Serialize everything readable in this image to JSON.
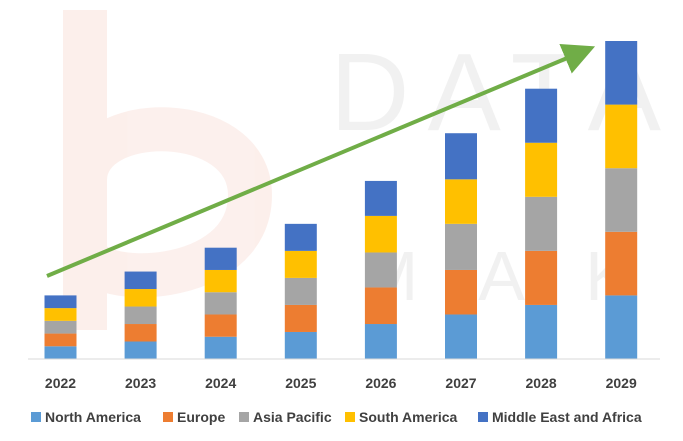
{
  "chart_data": {
    "type": "bar",
    "stacked": true,
    "title": "",
    "xlabel": "",
    "ylabel": "",
    "ylim": [
      0,
      100
    ],
    "grid": false,
    "legend_position": "bottom",
    "categories": [
      "2022",
      "2023",
      "2024",
      "2025",
      "2026",
      "2027",
      "2028",
      "2029"
    ],
    "series": [
      {
        "name": "North America",
        "color": "#5B9BD5",
        "values": [
          4,
          5.5,
          7,
          8.5,
          11,
          14,
          17,
          20
        ]
      },
      {
        "name": "Europe",
        "color": "#ED7D31",
        "values": [
          4,
          5.5,
          7,
          8.5,
          11.5,
          14,
          17,
          20
        ]
      },
      {
        "name": "Asia Pacific",
        "color": "#A5A5A5",
        "values": [
          4,
          5.5,
          7,
          8.5,
          11,
          14.5,
          17,
          20
        ]
      },
      {
        "name": "South America",
        "color": "#FFC000",
        "values": [
          4,
          5.5,
          7,
          8.5,
          11.5,
          14,
          17,
          20
        ]
      },
      {
        "name": "Middle East and Africa",
        "color": "#4472C4",
        "values": [
          4,
          5.5,
          7,
          8.5,
          11,
          14.5,
          17,
          20
        ]
      }
    ],
    "annotations": [
      {
        "type": "trend-arrow",
        "color": "#70AD47",
        "direction": "up-right",
        "meaning": "growth trend"
      }
    ]
  }
}
